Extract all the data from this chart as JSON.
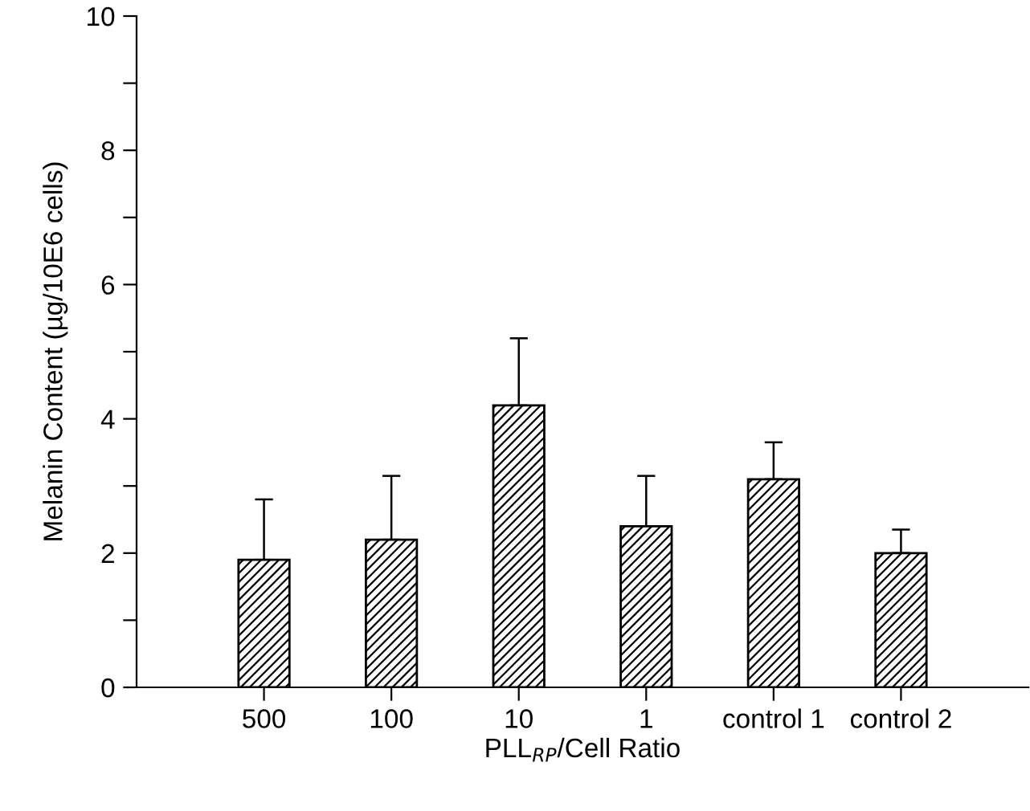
{
  "chart_data": {
    "type": "bar",
    "xlabel": "PLL$_{RP}$/Cell Ratio",
    "ylabel": "Melanin Content (µg/10E6 cells)",
    "categories": [
      "500",
      "100",
      "10",
      "1",
      "control 1",
      "control 2"
    ],
    "values": [
      1.9,
      2.2,
      4.2,
      2.4,
      3.1,
      2.0
    ],
    "errors": [
      [
        1.9,
        2.8
      ],
      [
        2.2,
        3.15
      ],
      [
        4.2,
        5.2
      ],
      [
        2.4,
        3.15
      ],
      [
        3.1,
        3.65
      ],
      [
        2.0,
        2.35
      ]
    ],
    "color": "#000000",
    "ylim": [
      0,
      10
    ],
    "yticks": [
      0,
      {
        "value": 1,
        "label": null
      },
      2,
      {
        "value": 3,
        "label": null
      },
      4,
      {
        "value": 5,
        "label": null
      },
      6,
      {
        "value": 7,
        "label": null
      },
      8,
      {
        "value": 9,
        "label": null
      },
      10
    ],
    "grid": false,
    "legend": false
  }
}
